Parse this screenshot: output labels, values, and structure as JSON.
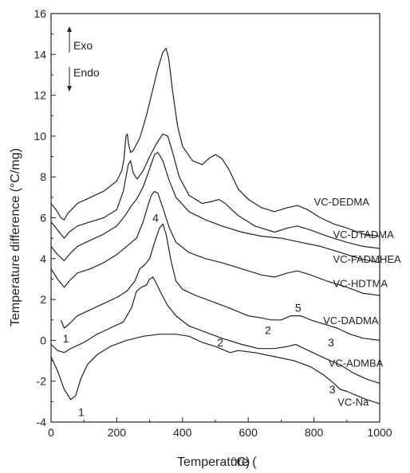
{
  "chart_data": {
    "type": "line",
    "title": "",
    "xlabel": "Temperature (",
    "xlabel_unit": "°C)",
    "ylabel": "Temperature difference (°C/mg)",
    "xlim": [
      0,
      1000
    ],
    "ylim": [
      -4,
      16
    ],
    "x_ticks": [
      "0",
      "200",
      "400",
      "600",
      "800",
      "1000"
    ],
    "y_ticks": [
      "-4",
      "-2",
      "0",
      "2",
      "4",
      "6",
      "8",
      "10",
      "12",
      "14",
      "16"
    ],
    "grid": false,
    "legend": "none",
    "exo_label": "Exo",
    "endo_label": "Endo",
    "series": [
      {
        "name": "VC-DEDMA",
        "points": [
          [
            0,
            6.7
          ],
          [
            15,
            6.4
          ],
          [
            30,
            6.0
          ],
          [
            40,
            5.9
          ],
          [
            50,
            6.2
          ],
          [
            80,
            6.7
          ],
          [
            120,
            7.0
          ],
          [
            160,
            7.3
          ],
          [
            200,
            7.8
          ],
          [
            215,
            8.3
          ],
          [
            222,
            8.9
          ],
          [
            228,
            10.0
          ],
          [
            232,
            10.1
          ],
          [
            236,
            9.6
          ],
          [
            242,
            9.2
          ],
          [
            250,
            9.3
          ],
          [
            270,
            9.9
          ],
          [
            290,
            11.0
          ],
          [
            310,
            12.3
          ],
          [
            325,
            13.3
          ],
          [
            340,
            14.1
          ],
          [
            350,
            14.3
          ],
          [
            358,
            13.8
          ],
          [
            370,
            12.2
          ],
          [
            385,
            10.5
          ],
          [
            400,
            9.5
          ],
          [
            430,
            8.8
          ],
          [
            460,
            8.6
          ],
          [
            480,
            8.9
          ],
          [
            500,
            9.1
          ],
          [
            520,
            8.9
          ],
          [
            540,
            8.4
          ],
          [
            570,
            7.4
          ],
          [
            600,
            6.9
          ],
          [
            640,
            6.5
          ],
          [
            680,
            6.3
          ],
          [
            720,
            6.5
          ],
          [
            750,
            6.6
          ],
          [
            780,
            6.4
          ],
          [
            820,
            6.0
          ],
          [
            860,
            5.7
          ],
          [
            900,
            5.5
          ],
          [
            950,
            5.2
          ],
          [
            1000,
            5.1
          ]
        ]
      },
      {
        "name": "VC-DTADMA",
        "points": [
          [
            0,
            5.8
          ],
          [
            20,
            5.4
          ],
          [
            40,
            5.0
          ],
          [
            55,
            5.3
          ],
          [
            80,
            5.6
          ],
          [
            120,
            5.8
          ],
          [
            160,
            6.0
          ],
          [
            200,
            6.4
          ],
          [
            220,
            7.3
          ],
          [
            235,
            8.6
          ],
          [
            242,
            8.8
          ],
          [
            250,
            8.2
          ],
          [
            262,
            7.9
          ],
          [
            280,
            8.3
          ],
          [
            300,
            9.0
          ],
          [
            320,
            9.6
          ],
          [
            340,
            10.1
          ],
          [
            355,
            10.0
          ],
          [
            370,
            9.2
          ],
          [
            390,
            8.0
          ],
          [
            420,
            7.1
          ],
          [
            460,
            6.7
          ],
          [
            490,
            6.8
          ],
          [
            510,
            6.9
          ],
          [
            530,
            6.7
          ],
          [
            570,
            6.1
          ],
          [
            620,
            5.6
          ],
          [
            680,
            5.3
          ],
          [
            720,
            5.5
          ],
          [
            750,
            5.6
          ],
          [
            790,
            5.4
          ],
          [
            840,
            5.1
          ],
          [
            900,
            4.8
          ],
          [
            950,
            4.6
          ],
          [
            1000,
            4.5
          ]
        ]
      },
      {
        "name": "VC-FADMHEA",
        "points": [
          [
            0,
            4.6
          ],
          [
            20,
            4.2
          ],
          [
            40,
            3.9
          ],
          [
            55,
            4.2
          ],
          [
            80,
            4.6
          ],
          [
            120,
            4.9
          ],
          [
            160,
            5.2
          ],
          [
            200,
            5.6
          ],
          [
            225,
            6.1
          ],
          [
            245,
            6.6
          ],
          [
            260,
            6.9
          ],
          [
            280,
            7.5
          ],
          [
            300,
            8.4
          ],
          [
            315,
            9.1
          ],
          [
            325,
            9.2
          ],
          [
            340,
            8.8
          ],
          [
            360,
            7.8
          ],
          [
            380,
            7.0
          ],
          [
            420,
            6.3
          ],
          [
            470,
            5.9
          ],
          [
            520,
            5.6
          ],
          [
            580,
            5.3
          ],
          [
            640,
            5.1
          ],
          [
            700,
            5.0
          ],
          [
            760,
            4.8
          ],
          [
            820,
            4.6
          ],
          [
            880,
            4.3
          ],
          [
            940,
            4.0
          ],
          [
            1000,
            3.8
          ]
        ]
      },
      {
        "name": "VC-HDTMA",
        "points": [
          [
            0,
            3.5
          ],
          [
            20,
            3.0
          ],
          [
            40,
            2.6
          ],
          [
            55,
            2.9
          ],
          [
            80,
            3.3
          ],
          [
            120,
            3.5
          ],
          [
            160,
            3.8
          ],
          [
            200,
            4.2
          ],
          [
            230,
            4.6
          ],
          [
            260,
            5.0
          ],
          [
            280,
            5.8
          ],
          [
            295,
            6.6
          ],
          [
            305,
            7.1
          ],
          [
            315,
            7.3
          ],
          [
            325,
            7.2
          ],
          [
            340,
            6.5
          ],
          [
            360,
            5.5
          ],
          [
            380,
            4.8
          ],
          [
            420,
            4.3
          ],
          [
            470,
            4.0
          ],
          [
            520,
            3.8
          ],
          [
            580,
            3.5
          ],
          [
            640,
            3.2
          ],
          [
            680,
            3.1
          ],
          [
            720,
            3.3
          ],
          [
            750,
            3.4
          ],
          [
            790,
            3.2
          ],
          [
            840,
            2.9
          ],
          [
            900,
            2.6
          ],
          [
            950,
            2.3
          ],
          [
            1000,
            2.2
          ]
        ]
      },
      {
        "name": "VC-DADMA",
        "points": [
          [
            30,
            1.0
          ],
          [
            40,
            0.6
          ],
          [
            55,
            0.8
          ],
          [
            80,
            1.2
          ],
          [
            120,
            1.5
          ],
          [
            160,
            1.8
          ],
          [
            200,
            2.1
          ],
          [
            230,
            2.4
          ],
          [
            255,
            2.9
          ],
          [
            270,
            3.5
          ],
          [
            285,
            3.7
          ],
          [
            300,
            4.0
          ],
          [
            315,
            4.8
          ],
          [
            330,
            5.5
          ],
          [
            340,
            5.7
          ],
          [
            350,
            5.2
          ],
          [
            365,
            3.9
          ],
          [
            380,
            2.9
          ],
          [
            400,
            2.5
          ],
          [
            440,
            2.2
          ],
          [
            490,
            1.9
          ],
          [
            540,
            1.6
          ],
          [
            600,
            1.2
          ],
          [
            640,
            1.1
          ],
          [
            670,
            1.0
          ],
          [
            700,
            1.0
          ],
          [
            730,
            1.2
          ],
          [
            760,
            1.2
          ],
          [
            790,
            1.0
          ],
          [
            830,
            0.8
          ],
          [
            870,
            0.6
          ],
          [
            910,
            0.3
          ],
          [
            950,
            0.1
          ],
          [
            1000,
            0.0
          ]
        ]
      },
      {
        "name": "VC-ADMBA",
        "points": [
          [
            0,
            -0.2
          ],
          [
            20,
            -0.5
          ],
          [
            40,
            -0.6
          ],
          [
            60,
            -0.4
          ],
          [
            100,
            -0.1
          ],
          [
            140,
            0.3
          ],
          [
            180,
            0.6
          ],
          [
            220,
            0.9
          ],
          [
            245,
            1.6
          ],
          [
            260,
            2.4
          ],
          [
            275,
            2.6
          ],
          [
            290,
            2.7
          ],
          [
            300,
            3.0
          ],
          [
            310,
            3.1
          ],
          [
            320,
            2.8
          ],
          [
            335,
            2.3
          ],
          [
            355,
            1.7
          ],
          [
            380,
            1.2
          ],
          [
            420,
            0.7
          ],
          [
            470,
            0.4
          ],
          [
            520,
            0.1
          ],
          [
            580,
            -0.2
          ],
          [
            630,
            -0.4
          ],
          [
            680,
            -0.4
          ],
          [
            720,
            -0.3
          ],
          [
            745,
            -0.2
          ],
          [
            770,
            -0.4
          ],
          [
            810,
            -0.7
          ],
          [
            850,
            -1.0
          ],
          [
            880,
            -1.2
          ],
          [
            920,
            -1.6
          ],
          [
            960,
            -1.9
          ],
          [
            1000,
            -2.1
          ]
        ]
      },
      {
        "name": "VC-Na",
        "points": [
          [
            0,
            -0.8
          ],
          [
            20,
            -1.5
          ],
          [
            40,
            -2.4
          ],
          [
            60,
            -2.9
          ],
          [
            75,
            -2.7
          ],
          [
            90,
            -1.9
          ],
          [
            110,
            -1.2
          ],
          [
            140,
            -0.7
          ],
          [
            180,
            -0.3
          ],
          [
            230,
            0.0
          ],
          [
            280,
            0.2
          ],
          [
            330,
            0.3
          ],
          [
            380,
            0.3
          ],
          [
            420,
            0.2
          ],
          [
            460,
            -0.1
          ],
          [
            500,
            -0.3
          ],
          [
            545,
            -0.6
          ],
          [
            570,
            -0.5
          ],
          [
            620,
            -0.6
          ],
          [
            680,
            -0.8
          ],
          [
            740,
            -1.0
          ],
          [
            790,
            -1.3
          ],
          [
            830,
            -1.7
          ],
          [
            860,
            -2.1
          ],
          [
            880,
            -2.4
          ],
          [
            900,
            -2.5
          ],
          [
            930,
            -2.7
          ],
          [
            960,
            -2.9
          ],
          [
            1000,
            -3.1
          ]
        ]
      }
    ],
    "series_labels": [
      {
        "text": "VC-DEDMA",
        "x": 800,
        "y": 6.6
      },
      {
        "text": "VC-DTADMA",
        "x": 858,
        "y": 5.0
      },
      {
        "text": "VC-FADMHEA",
        "x": 858,
        "y": 3.8
      },
      {
        "text": "VC-HDTMA",
        "x": 858,
        "y": 2.6
      },
      {
        "text": "VC-DADMA",
        "x": 828,
        "y": 0.8
      },
      {
        "text": "VC-ADMBA",
        "x": 844,
        "y": -1.3
      },
      {
        "text": "VC-Na",
        "x": 872,
        "y": -3.2
      }
    ],
    "annotations": [
      {
        "text": "1",
        "x": 45,
        "y": -0.1
      },
      {
        "text": "1",
        "x": 92,
        "y": -3.7
      },
      {
        "text": "2",
        "x": 660,
        "y": 0.3
      },
      {
        "text": "2",
        "x": 515,
        "y": -0.3
      },
      {
        "text": "3",
        "x": 852,
        "y": -0.3
      },
      {
        "text": "3",
        "x": 856,
        "y": -2.6
      },
      {
        "text": "4",
        "x": 318,
        "y": 5.8
      },
      {
        "text": "5",
        "x": 752,
        "y": 1.4
      }
    ]
  }
}
